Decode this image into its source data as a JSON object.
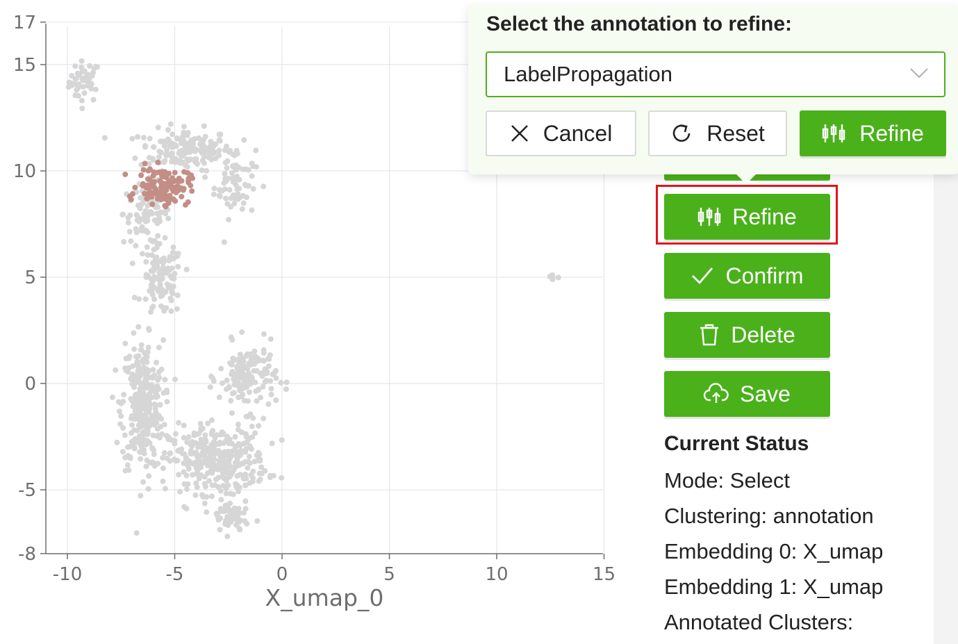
{
  "chart_data": {
    "type": "scatter",
    "xlabel": "X_umap_0",
    "ylabel": "",
    "xlim": [
      -11,
      15
    ],
    "ylim": [
      -8,
      17
    ],
    "x_ticks": [
      "-10",
      "-5",
      "0",
      "5",
      "10",
      "15"
    ],
    "y_ticks": [
      "17",
      "15",
      "10",
      "5",
      "0",
      "-5",
      "-8"
    ],
    "grid": true,
    "colors": {
      "unselected": "#d6d6d6",
      "selected": "#c28e85"
    },
    "clusters": [
      {
        "name": "unselected",
        "center": [
          -9.2,
          14.2
        ],
        "spread": [
          0.6,
          0.8
        ],
        "count": 45
      },
      {
        "name": "unselected",
        "center": [
          -4.5,
          11.0
        ],
        "spread": [
          1.8,
          0.8
        ],
        "count": 160
      },
      {
        "name": "unselected",
        "center": [
          -2.2,
          9.5
        ],
        "spread": [
          0.8,
          1.4
        ],
        "count": 70
      },
      {
        "name": "unselected",
        "center": [
          -6.3,
          8.0
        ],
        "spread": [
          0.9,
          1.2
        ],
        "count": 90
      },
      {
        "name": "unselected",
        "center": [
          -5.6,
          4.8
        ],
        "spread": [
          0.8,
          1.4
        ],
        "count": 110
      },
      {
        "name": "unselected",
        "center": [
          -6.5,
          -1.0
        ],
        "spread": [
          0.8,
          2.5
        ],
        "count": 320
      },
      {
        "name": "unselected",
        "center": [
          -3.0,
          -3.6
        ],
        "spread": [
          1.9,
          1.3
        ],
        "count": 340
      },
      {
        "name": "unselected",
        "center": [
          -1.6,
          0.3
        ],
        "spread": [
          1.1,
          1.3
        ],
        "count": 150
      },
      {
        "name": "unselected",
        "center": [
          -2.4,
          -6.3
        ],
        "spread": [
          0.7,
          0.7
        ],
        "count": 60
      },
      {
        "name": "unselected",
        "center": [
          12.6,
          5.0
        ],
        "spread": [
          0.2,
          0.15
        ],
        "count": 8
      },
      {
        "name": "selected",
        "center": [
          -5.5,
          9.3
        ],
        "spread": [
          1.0,
          0.7
        ],
        "count": 130
      }
    ]
  },
  "popover": {
    "title": "Select the annotation to refine:",
    "selected_value": "LabelPropagation",
    "cancel_label": "Cancel",
    "reset_label": "Reset",
    "refine_label": "Refine"
  },
  "sidebar": {
    "buttons": {
      "refine": "Refine",
      "confirm": "Confirm",
      "delete": "Delete",
      "save": "Save"
    },
    "status": {
      "title": "Current Status",
      "mode": "Mode: Select",
      "clustering": "Clustering: annotation",
      "embedding0": "Embedding 0: X_umap",
      "embedding1": "Embedding 1: X_umap",
      "annotated": "Annotated Clusters:"
    }
  }
}
